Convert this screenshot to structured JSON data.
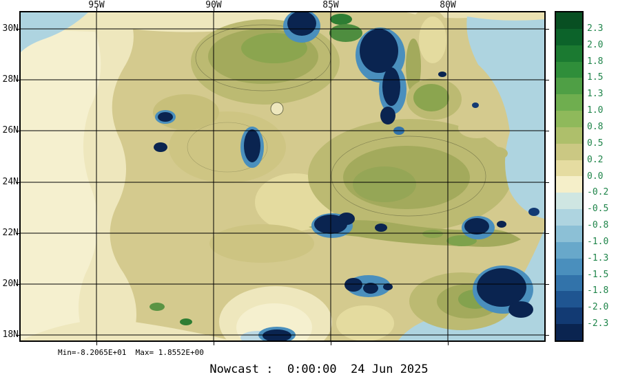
{
  "figure": {
    "caption": "Nowcast :  0:00:00  24 Jun 2025",
    "stats": "Min=-8.2065E+01  Max= 1.8552E+00"
  },
  "axes": {
    "lon_labels": [
      "95W",
      "90W",
      "85W",
      "80W"
    ],
    "lat_labels": [
      "30N",
      "28N",
      "26N",
      "24N",
      "22N",
      "20N",
      "18N"
    ]
  },
  "colorbar": {
    "labels": [
      "2.3",
      "2.0",
      "1.8",
      "1.5",
      "1.3",
      "1.0",
      "0.8",
      "0.5",
      "0.2",
      "0.0",
      "-0.2",
      "-0.5",
      "-0.8",
      "-1.0",
      "-1.3",
      "-1.5",
      "-1.8",
      "-2.0",
      "-2.3"
    ],
    "colors": [
      "#084f22",
      "#0c632a",
      "#1b7a31",
      "#2f8e3a",
      "#4f9f45",
      "#6fae4f",
      "#8fb95b",
      "#aebf6b",
      "#cbc883",
      "#e5dca1",
      "#f5efc9",
      "#cfe6e2",
      "#aed4e0",
      "#8cc0d6",
      "#68a8ca",
      "#4a8fbd",
      "#3273aa",
      "#1f5591",
      "#123a73",
      "#0a2450"
    ],
    "label_color": "#1e8449"
  },
  "chart_data": {
    "type": "heatmap",
    "title": "Nowcast :  0:00:00  24 Jun 2025",
    "x_ticks": [
      "95W",
      "90W",
      "85W",
      "80W"
    ],
    "y_ticks": [
      "30N",
      "28N",
      "26N",
      "24N",
      "22N",
      "20N",
      "18N"
    ],
    "colorbar_levels": [
      2.3,
      2.0,
      1.8,
      1.5,
      1.3,
      1.0,
      0.8,
      0.5,
      0.2,
      0.0,
      -0.2,
      -0.5,
      -0.8,
      -1.0,
      -1.3,
      -1.5,
      -1.8,
      -2.0,
      -2.3
    ],
    "min": "-8.2065E+01",
    "max": "1.8552E+00",
    "legend_position": "right",
    "grid": true
  }
}
